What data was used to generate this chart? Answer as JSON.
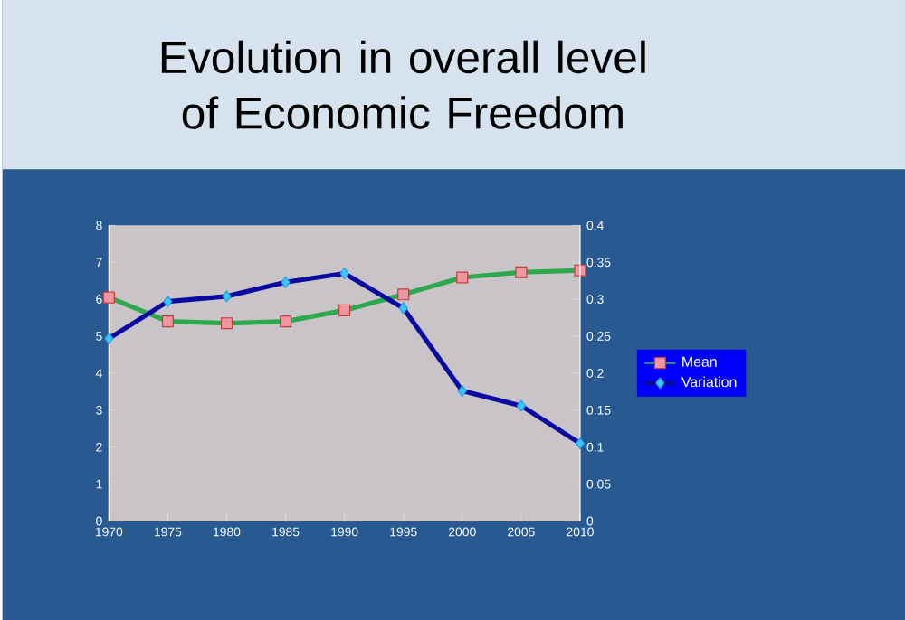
{
  "chart_data": {
    "type": "line",
    "title": "Evolution in overall level of Economic Freedom",
    "x": [
      1970,
      1975,
      1980,
      1985,
      1990,
      1995,
      2000,
      2005,
      2010
    ],
    "series": [
      {
        "name": "Mean",
        "color": "#2ea84f",
        "marker": "square",
        "values": [
          6.05,
          5.4,
          5.35,
          5.4,
          5.7,
          6.13,
          6.59,
          6.73,
          6.78
        ]
      },
      {
        "name": "Variation",
        "color": "#0a0aa0",
        "marker": "diamond",
        "axis": "y2",
        "values": [
          0.247,
          0.297,
          0.304,
          0.323,
          0.335,
          0.288,
          0.176,
          0.156,
          0.105
        ]
      }
    ],
    "xlim": [
      1970,
      2010
    ],
    "xticks": [
      1970,
      1975,
      1980,
      1985,
      1990,
      1995,
      2000,
      2005,
      2010
    ],
    "ylim": [
      0,
      8
    ],
    "yticks": [
      0,
      1,
      2,
      3,
      4,
      5,
      6,
      7,
      8
    ],
    "y2lim": [
      0,
      0.4
    ],
    "y2ticks": [
      0,
      0.05,
      0.1,
      0.15,
      0.2,
      0.25,
      0.3,
      0.35,
      0.4
    ],
    "grid": false,
    "legend": "right",
    "line_style": "solid"
  }
}
